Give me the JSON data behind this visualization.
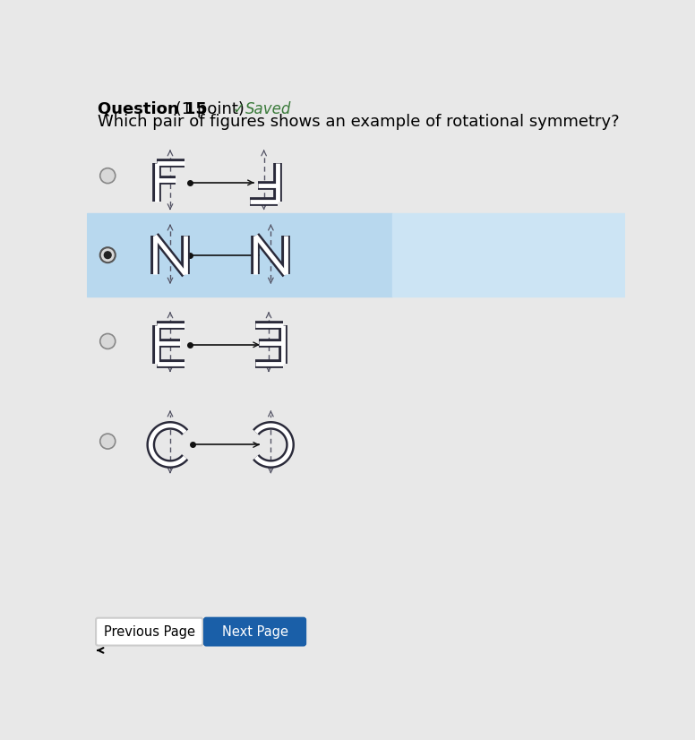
{
  "bg_color": "#e8e8e8",
  "white_bg": "#ffffff",
  "highlight_color": "#b8d8ee",
  "highlight_color2": "#cce4f4",
  "title_bold": "Question 15",
  "title_normal": " (1 point)",
  "saved_text": "Saved",
  "question_text": "Which pair of figures shows an example of rotational symmetry?",
  "next_page_btn_color": "#1a5fa8",
  "next_page_text_color": "#ffffff",
  "prev_page_text": "Previous Page",
  "next_page_text": "Next Page",
  "letter_color": "#2a2a3a",
  "letter_lw": 2.5,
  "dashed_color": "#555566",
  "connect_color": "#111111",
  "radio_color": "#666677"
}
